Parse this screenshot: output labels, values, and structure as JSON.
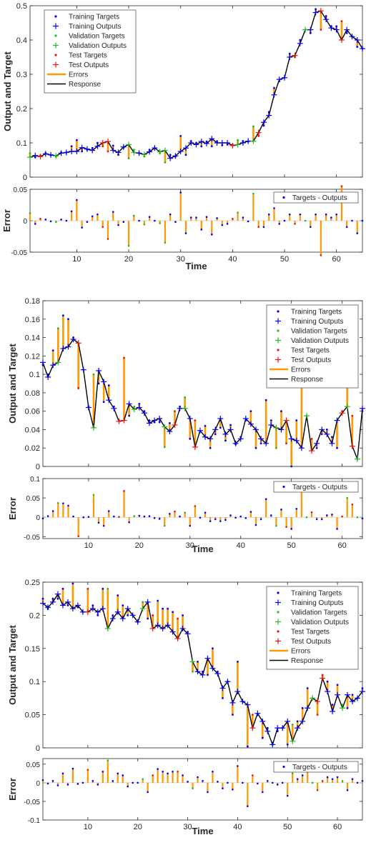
{
  "colors": {
    "training": "#0000ff",
    "validation": "#22bb22",
    "test": "#ee1111",
    "errors": "#ff9900",
    "response": "#000000"
  },
  "legend_top": {
    "training_targets": "Training Targets",
    "training_outputs": "Training Outputs",
    "validation_targets": "Validation Targets",
    "validation_outputs": "Validation Outputs",
    "test_targets": "Test Targets",
    "test_outputs": "Test Outputs",
    "errors": "Errors",
    "response": "Response"
  },
  "legend_bottom": {
    "targets_minus_outputs": "Targets - Outputs"
  },
  "labels": {
    "top_ylabel": "Output and Target",
    "bottom_ylabel": "Error",
    "xlabel": "Time"
  },
  "chart_data": [
    {
      "type": "line",
      "title": "",
      "xlabel": "Time",
      "ylabel": "Output and Target",
      "xlim": [
        1,
        65
      ],
      "ylim": [
        0,
        0.5
      ],
      "yticks": [
        "0",
        "0.1",
        "0.2",
        "0.3",
        "0.4",
        "0.5"
      ],
      "err_xlabel": "Time",
      "err_ylabel": "Error",
      "err_ylim": [
        -0.05,
        0.05
      ],
      "err_yticks": [
        "-0.05",
        "0",
        "0.05"
      ],
      "xticks": [
        "10",
        "20",
        "30",
        "40",
        "50",
        "60"
      ],
      "legend": "top-left",
      "grid": false,
      "x": [
        1,
        2,
        3,
        4,
        5,
        6,
        7,
        8,
        9,
        10,
        11,
        12,
        13,
        14,
        15,
        16,
        17,
        18,
        19,
        20,
        21,
        22,
        23,
        24,
        25,
        26,
        27,
        28,
        29,
        30,
        31,
        32,
        33,
        34,
        35,
        36,
        37,
        38,
        39,
        40,
        41,
        42,
        43,
        44,
        45,
        46,
        47,
        48,
        49,
        50,
        51,
        52,
        53,
        54,
        55,
        56,
        57,
        58,
        59,
        60,
        61,
        62,
        63,
        64,
        65
      ],
      "targets": [
        0.07,
        0.058,
        0.063,
        0.07,
        0.064,
        0.06,
        0.072,
        0.072,
        0.09,
        0.108,
        0.075,
        0.08,
        0.085,
        0.1,
        0.09,
        0.075,
        0.092,
        0.065,
        0.086,
        0.055,
        0.08,
        0.07,
        0.06,
        0.08,
        0.085,
        0.07,
        0.043,
        0.065,
        0.06,
        0.12,
        0.065,
        0.105,
        0.1,
        0.09,
        0.104,
        0.09,
        0.104,
        0.093,
        0.095,
        0.095,
        0.108,
        0.105,
        0.104,
        0.148,
        0.12,
        0.15,
        0.19,
        0.26,
        0.28,
        0.29,
        0.36,
        0.35,
        0.4,
        0.43,
        0.42,
        0.49,
        0.43,
        0.47,
        0.44,
        0.44,
        0.455,
        0.42,
        0.41,
        0.38,
        0.375
      ],
      "outputs": [
        0.058,
        0.063,
        0.06,
        0.068,
        0.065,
        0.062,
        0.07,
        0.072,
        0.075,
        0.075,
        0.086,
        0.082,
        0.078,
        0.09,
        0.1,
        0.104,
        0.078,
        0.072,
        0.088,
        0.095,
        0.072,
        0.07,
        0.066,
        0.074,
        0.085,
        0.074,
        0.078,
        0.055,
        0.062,
        0.075,
        0.085,
        0.1,
        0.095,
        0.104,
        0.098,
        0.112,
        0.1,
        0.1,
        0.1,
        0.092,
        0.095,
        0.1,
        0.105,
        0.105,
        0.13,
        0.16,
        0.18,
        0.24,
        0.285,
        0.29,
        0.35,
        0.355,
        0.39,
        0.43,
        0.43,
        0.48,
        0.485,
        0.46,
        0.435,
        0.43,
        0.4,
        0.43,
        0.41,
        0.4,
        0.375
      ],
      "sets": [
        "V",
        "T",
        "R",
        "T",
        "T",
        "V",
        "T",
        "T",
        "T",
        "T",
        "T",
        "T",
        "T",
        "T",
        "R",
        "R",
        "T",
        "T",
        "T",
        "V",
        "V",
        "T",
        "V",
        "T",
        "T",
        "V",
        "V",
        "T",
        "T",
        "T",
        "T",
        "T",
        "T",
        "T",
        "T",
        "T",
        "T",
        "T",
        "T",
        "R",
        "V",
        "T",
        "T",
        "V",
        "R",
        "T",
        "T",
        "T",
        "T",
        "T",
        "T",
        "R",
        "T",
        "V",
        "T",
        "T",
        "R",
        "T",
        "T",
        "T",
        "R",
        "T",
        "T",
        "T",
        "T"
      ]
    },
    {
      "type": "line",
      "title": "",
      "xlabel": "Time",
      "ylabel": "Output and Target",
      "xlim": [
        1,
        64
      ],
      "ylim": [
        0,
        0.18
      ],
      "yticks": [
        "0",
        "0.02",
        "0.04",
        "0.06",
        "0.08",
        "0.1",
        "0.12",
        "0.14",
        "0.16",
        "0.18"
      ],
      "err_xlabel": "Time",
      "err_ylabel": "Error",
      "err_ylim": [
        -0.055,
        0.1
      ],
      "err_yticks": [
        "-0.05",
        "0",
        "0.05",
        "0.1"
      ],
      "xticks": [
        "10",
        "20",
        "30",
        "40",
        "50",
        "60"
      ],
      "legend": "top-right",
      "grid": false,
      "x": [
        1,
        2,
        3,
        4,
        5,
        6,
        7,
        8,
        9,
        10,
        11,
        12,
        13,
        14,
        15,
        16,
        17,
        18,
        19,
        20,
        21,
        22,
        23,
        24,
        25,
        26,
        27,
        28,
        29,
        30,
        31,
        32,
        33,
        34,
        35,
        36,
        37,
        38,
        39,
        40,
        41,
        42,
        43,
        44,
        45,
        46,
        47,
        48,
        49,
        50,
        51,
        52,
        53,
        54,
        55,
        56,
        57,
        58,
        59,
        60,
        61,
        62,
        63,
        64
      ],
      "targets": [
        0.11,
        0.1,
        0.126,
        0.15,
        0.164,
        0.16,
        0.14,
        0.085,
        0.105,
        0.065,
        0.1,
        0.09,
        0.07,
        0.088,
        0.065,
        0.05,
        0.118,
        0.055,
        0.065,
        0.068,
        0.06,
        0.05,
        0.048,
        0.048,
        0.021,
        0.047,
        0.06,
        0.065,
        0.075,
        0.03,
        0.05,
        0.038,
        0.044,
        0.02,
        0.035,
        0.042,
        0.028,
        0.045,
        0.024,
        0.032,
        0.05,
        0.06,
        0.02,
        0.025,
        0.072,
        0.05,
        0.02,
        0.06,
        0.025,
        0.0,
        0.05,
        0.087,
        0.055,
        0.03,
        0.02,
        0.035,
        0.04,
        0.032,
        0.02,
        0.06,
        0.115,
        0.055,
        0.008,
        0.06
      ],
      "outputs": [
        0.113,
        0.097,
        0.11,
        0.113,
        0.128,
        0.13,
        0.138,
        0.134,
        0.105,
        0.064,
        0.042,
        0.104,
        0.092,
        0.072,
        0.063,
        0.049,
        0.05,
        0.068,
        0.062,
        0.064,
        0.058,
        0.047,
        0.05,
        0.052,
        0.043,
        0.038,
        0.045,
        0.063,
        0.063,
        0.052,
        0.021,
        0.039,
        0.032,
        0.03,
        0.04,
        0.052,
        0.035,
        0.04,
        0.025,
        0.03,
        0.052,
        0.046,
        0.04,
        0.03,
        0.025,
        0.045,
        0.042,
        0.04,
        0.05,
        0.03,
        0.028,
        0.02,
        0.055,
        0.017,
        0.025,
        0.04,
        0.035,
        0.025,
        0.05,
        0.058,
        0.065,
        0.022,
        0.008,
        0.063
      ],
      "sets": [
        "T",
        "T",
        "T",
        "V",
        "T",
        "T",
        "T",
        "R",
        "T",
        "T",
        "V",
        "T",
        "T",
        "T",
        "T",
        "R",
        "R",
        "T",
        "V",
        "T",
        "T",
        "T",
        "T",
        "T",
        "V",
        "T",
        "R",
        "T",
        "V",
        "T",
        "R",
        "T",
        "T",
        "T",
        "T",
        "T",
        "T",
        "T",
        "T",
        "T",
        "T",
        "T",
        "T",
        "T",
        "T",
        "T",
        "V",
        "T",
        "R",
        "T",
        "T",
        "T",
        "V",
        "R",
        "T",
        "T",
        "T",
        "T",
        "T",
        "R",
        "V",
        "R",
        "V",
        "T"
      ]
    },
    {
      "type": "line",
      "title": "",
      "xlabel": "Time",
      "ylabel": "Output and Target",
      "xlim": [
        1,
        65
      ],
      "ylim": [
        0,
        0.25
      ],
      "yticks": [
        "0",
        "0.05",
        "0.1",
        "0.15",
        "0.2",
        "0.25"
      ],
      "err_xlabel": "Time",
      "err_ylabel": "Error",
      "err_ylim": [
        -0.1,
        0.065
      ],
      "err_yticks": [
        "-0.1",
        "-0.05",
        "0",
        "0.05"
      ],
      "xticks": [
        "10",
        "20",
        "30",
        "40",
        "50",
        "60"
      ],
      "legend": "top-right",
      "grid": false,
      "x": [
        1,
        2,
        3,
        4,
        5,
        6,
        7,
        8,
        9,
        10,
        11,
        12,
        13,
        14,
        15,
        16,
        17,
        18,
        19,
        20,
        21,
        22,
        23,
        24,
        25,
        26,
        27,
        28,
        29,
        30,
        31,
        32,
        33,
        34,
        35,
        36,
        37,
        38,
        39,
        40,
        41,
        42,
        43,
        44,
        45,
        46,
        47,
        48,
        49,
        50,
        51,
        52,
        53,
        54,
        55,
        56,
        57,
        58,
        59,
        60,
        61,
        62,
        63,
        64,
        65
      ],
      "targets": [
        0.225,
        0.21,
        0.225,
        0.225,
        0.24,
        0.215,
        0.248,
        0.212,
        0.205,
        0.24,
        0.215,
        0.2,
        0.24,
        0.24,
        0.2,
        0.23,
        0.215,
        0.2,
        0.2,
        0.19,
        0.22,
        0.195,
        0.2,
        0.222,
        0.21,
        0.21,
        0.205,
        0.195,
        0.2,
        0.175,
        0.115,
        0.13,
        0.115,
        0.11,
        0.15,
        0.115,
        0.075,
        0.1,
        0.05,
        0.13,
        0.07,
        0.002,
        0.05,
        0.05,
        0.015,
        0.03,
        0.005,
        0.025,
        0.03,
        0.005,
        0.035,
        0.04,
        0.06,
        0.09,
        0.075,
        0.05,
        0.11,
        0.1,
        0.065,
        0.095,
        0.065,
        0.06,
        0.08,
        0.075,
        0.09
      ],
      "outputs": [
        0.218,
        0.212,
        0.22,
        0.232,
        0.215,
        0.22,
        0.21,
        0.215,
        0.205,
        0.205,
        0.21,
        0.205,
        0.21,
        0.18,
        0.195,
        0.205,
        0.195,
        0.21,
        0.2,
        0.19,
        0.21,
        0.22,
        0.18,
        0.185,
        0.18,
        0.185,
        0.175,
        0.165,
        0.18,
        0.172,
        0.13,
        0.115,
        0.11,
        0.135,
        0.12,
        0.112,
        0.09,
        0.1,
        0.068,
        0.085,
        0.07,
        0.065,
        0.03,
        0.052,
        0.04,
        0.025,
        0.005,
        0.03,
        0.03,
        0.04,
        0.01,
        0.03,
        0.04,
        0.06,
        0.075,
        0.07,
        0.105,
        0.085,
        0.055,
        0.08,
        0.06,
        0.08,
        0.07,
        0.075,
        0.085
      ],
      "sets": [
        "T",
        "T",
        "T",
        "T",
        "T",
        "T",
        "T",
        "T",
        "T",
        "R",
        "T",
        "T",
        "T",
        "V",
        "T",
        "T",
        "T",
        "T",
        "T",
        "T",
        "V",
        "T",
        "R",
        "T",
        "T",
        "T",
        "T",
        "R",
        "T",
        "T",
        "V",
        "T",
        "T",
        "T",
        "T",
        "T",
        "T",
        "T",
        "T",
        "T",
        "T",
        "T",
        "R",
        "T",
        "T",
        "T",
        "T",
        "T",
        "T",
        "T",
        "V",
        "T",
        "T",
        "T",
        "V",
        "R",
        "R",
        "T",
        "T",
        "T",
        "V",
        "T",
        "T",
        "T",
        "T"
      ]
    }
  ]
}
